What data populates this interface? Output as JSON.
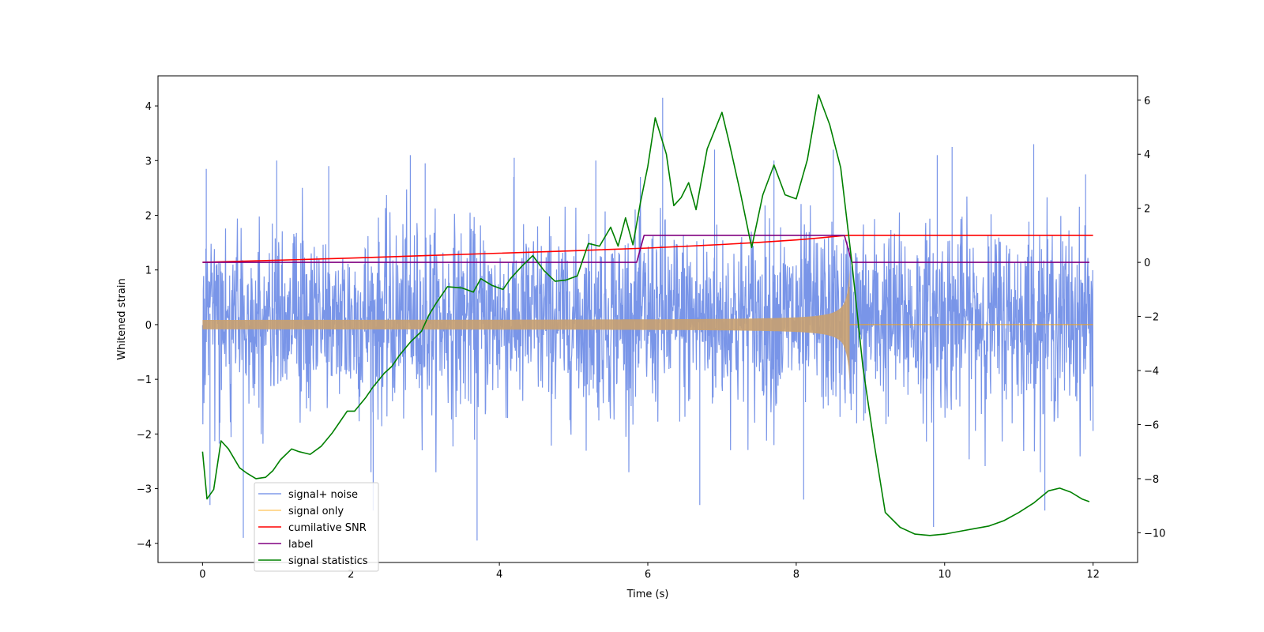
{
  "chart_data": {
    "type": "line",
    "title": "",
    "xlabel": "Time (s)",
    "ylabel": "Whitened strain",
    "ylabel_right": "",
    "xlim": [
      -0.6,
      12.6
    ],
    "ylim": [
      -4.35,
      4.55
    ],
    "ylim_right": [
      -11.1,
      6.9
    ],
    "x_ticks": [
      0,
      2,
      4,
      6,
      8,
      10,
      12
    ],
    "x_tick_labels": [
      "0",
      "2",
      "4",
      "6",
      "8",
      "10",
      "12"
    ],
    "y_ticks": [
      -4,
      -3,
      -2,
      -1,
      0,
      1,
      2,
      3,
      4
    ],
    "y_tick_labels": [
      "−4",
      "−3",
      "−2",
      "−1",
      "0",
      "1",
      "2",
      "3",
      "4"
    ],
    "y2_ticks": [
      -10,
      -8,
      -6,
      -4,
      -2,
      0,
      2,
      4,
      6
    ],
    "y2_tick_labels": [
      "−10",
      "−8",
      "−6",
      "−4",
      "−2",
      "0",
      "2",
      "4",
      "6"
    ],
    "grid": false,
    "legend_position": "lower-left",
    "series": [
      {
        "name": "signal+ noise",
        "axis": "left",
        "color": "#6a8ae6",
        "style": "dense noise",
        "t_range": [
          0,
          12
        ],
        "noise_std": 0.9,
        "peaks_up": [
          [
            0.05,
            2.85
          ],
          [
            1.0,
            3.0
          ],
          [
            1.7,
            2.9
          ],
          [
            2.8,
            3.1
          ],
          [
            3.0,
            2.95
          ],
          [
            4.2,
            3.05
          ],
          [
            5.3,
            3.0
          ],
          [
            6.2,
            4.15
          ],
          [
            6.9,
            3.2
          ],
          [
            7.7,
            3.0
          ],
          [
            8.5,
            3.2
          ],
          [
            9.9,
            3.1
          ],
          [
            10.1,
            3.25
          ],
          [
            11.2,
            3.3
          ],
          [
            11.9,
            2.75
          ]
        ],
        "peaks_down": [
          [
            0.55,
            -3.9
          ],
          [
            3.7,
            -3.95
          ],
          [
            9.85,
            -3.7
          ],
          [
            11.35,
            -3.4
          ],
          [
            2.3,
            -3.4
          ],
          [
            6.7,
            -3.3
          ],
          [
            8.1,
            -3.2
          ],
          [
            0.1,
            -3.3
          ]
        ]
      },
      {
        "name": "signal only",
        "axis": "left",
        "color": "#ffa500",
        "style": "chirp",
        "merger_time": 8.72,
        "amp_start": 0.08,
        "amp_peak": 1.05
      },
      {
        "name": "cumilative SNR",
        "axis": "right",
        "color": "#ff0000",
        "x": [
          0,
          1,
          2,
          3,
          4,
          5,
          6,
          7,
          7.5,
          8,
          8.3,
          8.6,
          8.7,
          8.72,
          9,
          10,
          11,
          12
        ],
        "y": [
          0,
          0.08,
          0.16,
          0.25,
          0.34,
          0.43,
          0.53,
          0.66,
          0.74,
          0.83,
          0.9,
          0.98,
          1.0,
          1.0,
          1.0,
          1.0,
          1.0,
          1.0
        ]
      },
      {
        "name": "label",
        "axis": "right",
        "color": "#800080",
        "x": [
          0,
          5.85,
          5.95,
          8.65,
          8.75,
          11.95
        ],
        "y": [
          0,
          0,
          1,
          1,
          0,
          0
        ]
      },
      {
        "name": "signal statistics",
        "axis": "right",
        "color": "#008000",
        "x": [
          0,
          0.06,
          0.15,
          0.25,
          0.35,
          0.5,
          0.6,
          0.72,
          0.85,
          0.95,
          1.05,
          1.2,
          1.3,
          1.45,
          1.6,
          1.75,
          1.85,
          1.95,
          2.05,
          2.2,
          2.3,
          2.45,
          2.55,
          2.65,
          2.8,
          2.95,
          3.05,
          3.15,
          3.3,
          3.5,
          3.65,
          3.75,
          3.9,
          4.05,
          4.15,
          4.3,
          4.45,
          4.6,
          4.75,
          4.9,
          5.05,
          5.2,
          5.35,
          5.5,
          5.6,
          5.7,
          5.8,
          5.9,
          6.0,
          6.1,
          6.25,
          6.35,
          6.45,
          6.55,
          6.65,
          6.8,
          7.0,
          7.1,
          7.25,
          7.4,
          7.55,
          7.7,
          7.85,
          8.0,
          8.15,
          8.3,
          8.45,
          8.6,
          8.75,
          8.9,
          9.05,
          9.2,
          9.4,
          9.6,
          9.8,
          10.0,
          10.2,
          10.4,
          10.6,
          10.8,
          11.0,
          11.2,
          11.4,
          11.55,
          11.7,
          11.85,
          11.95
        ],
        "y": [
          -7.0,
          -8.75,
          -8.4,
          -6.6,
          -6.9,
          -7.6,
          -7.8,
          -8.0,
          -7.95,
          -7.7,
          -7.3,
          -6.9,
          -7.0,
          -7.1,
          -6.8,
          -6.3,
          -5.9,
          -5.5,
          -5.5,
          -5.0,
          -4.6,
          -4.1,
          -3.85,
          -3.45,
          -2.95,
          -2.55,
          -1.95,
          -1.5,
          -0.9,
          -0.95,
          -1.1,
          -0.6,
          -0.85,
          -1.0,
          -0.6,
          -0.15,
          0.25,
          -0.3,
          -0.7,
          -0.65,
          -0.5,
          0.7,
          0.6,
          1.3,
          0.6,
          1.65,
          0.65,
          2.2,
          3.55,
          5.35,
          4.0,
          2.1,
          2.4,
          2.95,
          1.95,
          4.2,
          5.55,
          4.4,
          2.55,
          0.55,
          2.5,
          3.6,
          2.5,
          2.35,
          3.8,
          6.2,
          5.1,
          3.5,
          0.0,
          -3.9,
          -6.7,
          -9.25,
          -9.8,
          -10.05,
          -10.1,
          -10.05,
          -9.95,
          -9.85,
          -9.75,
          -9.55,
          -9.25,
          -8.9,
          -8.45,
          -8.35,
          -8.5,
          -8.75,
          -8.85
        ]
      }
    ]
  }
}
